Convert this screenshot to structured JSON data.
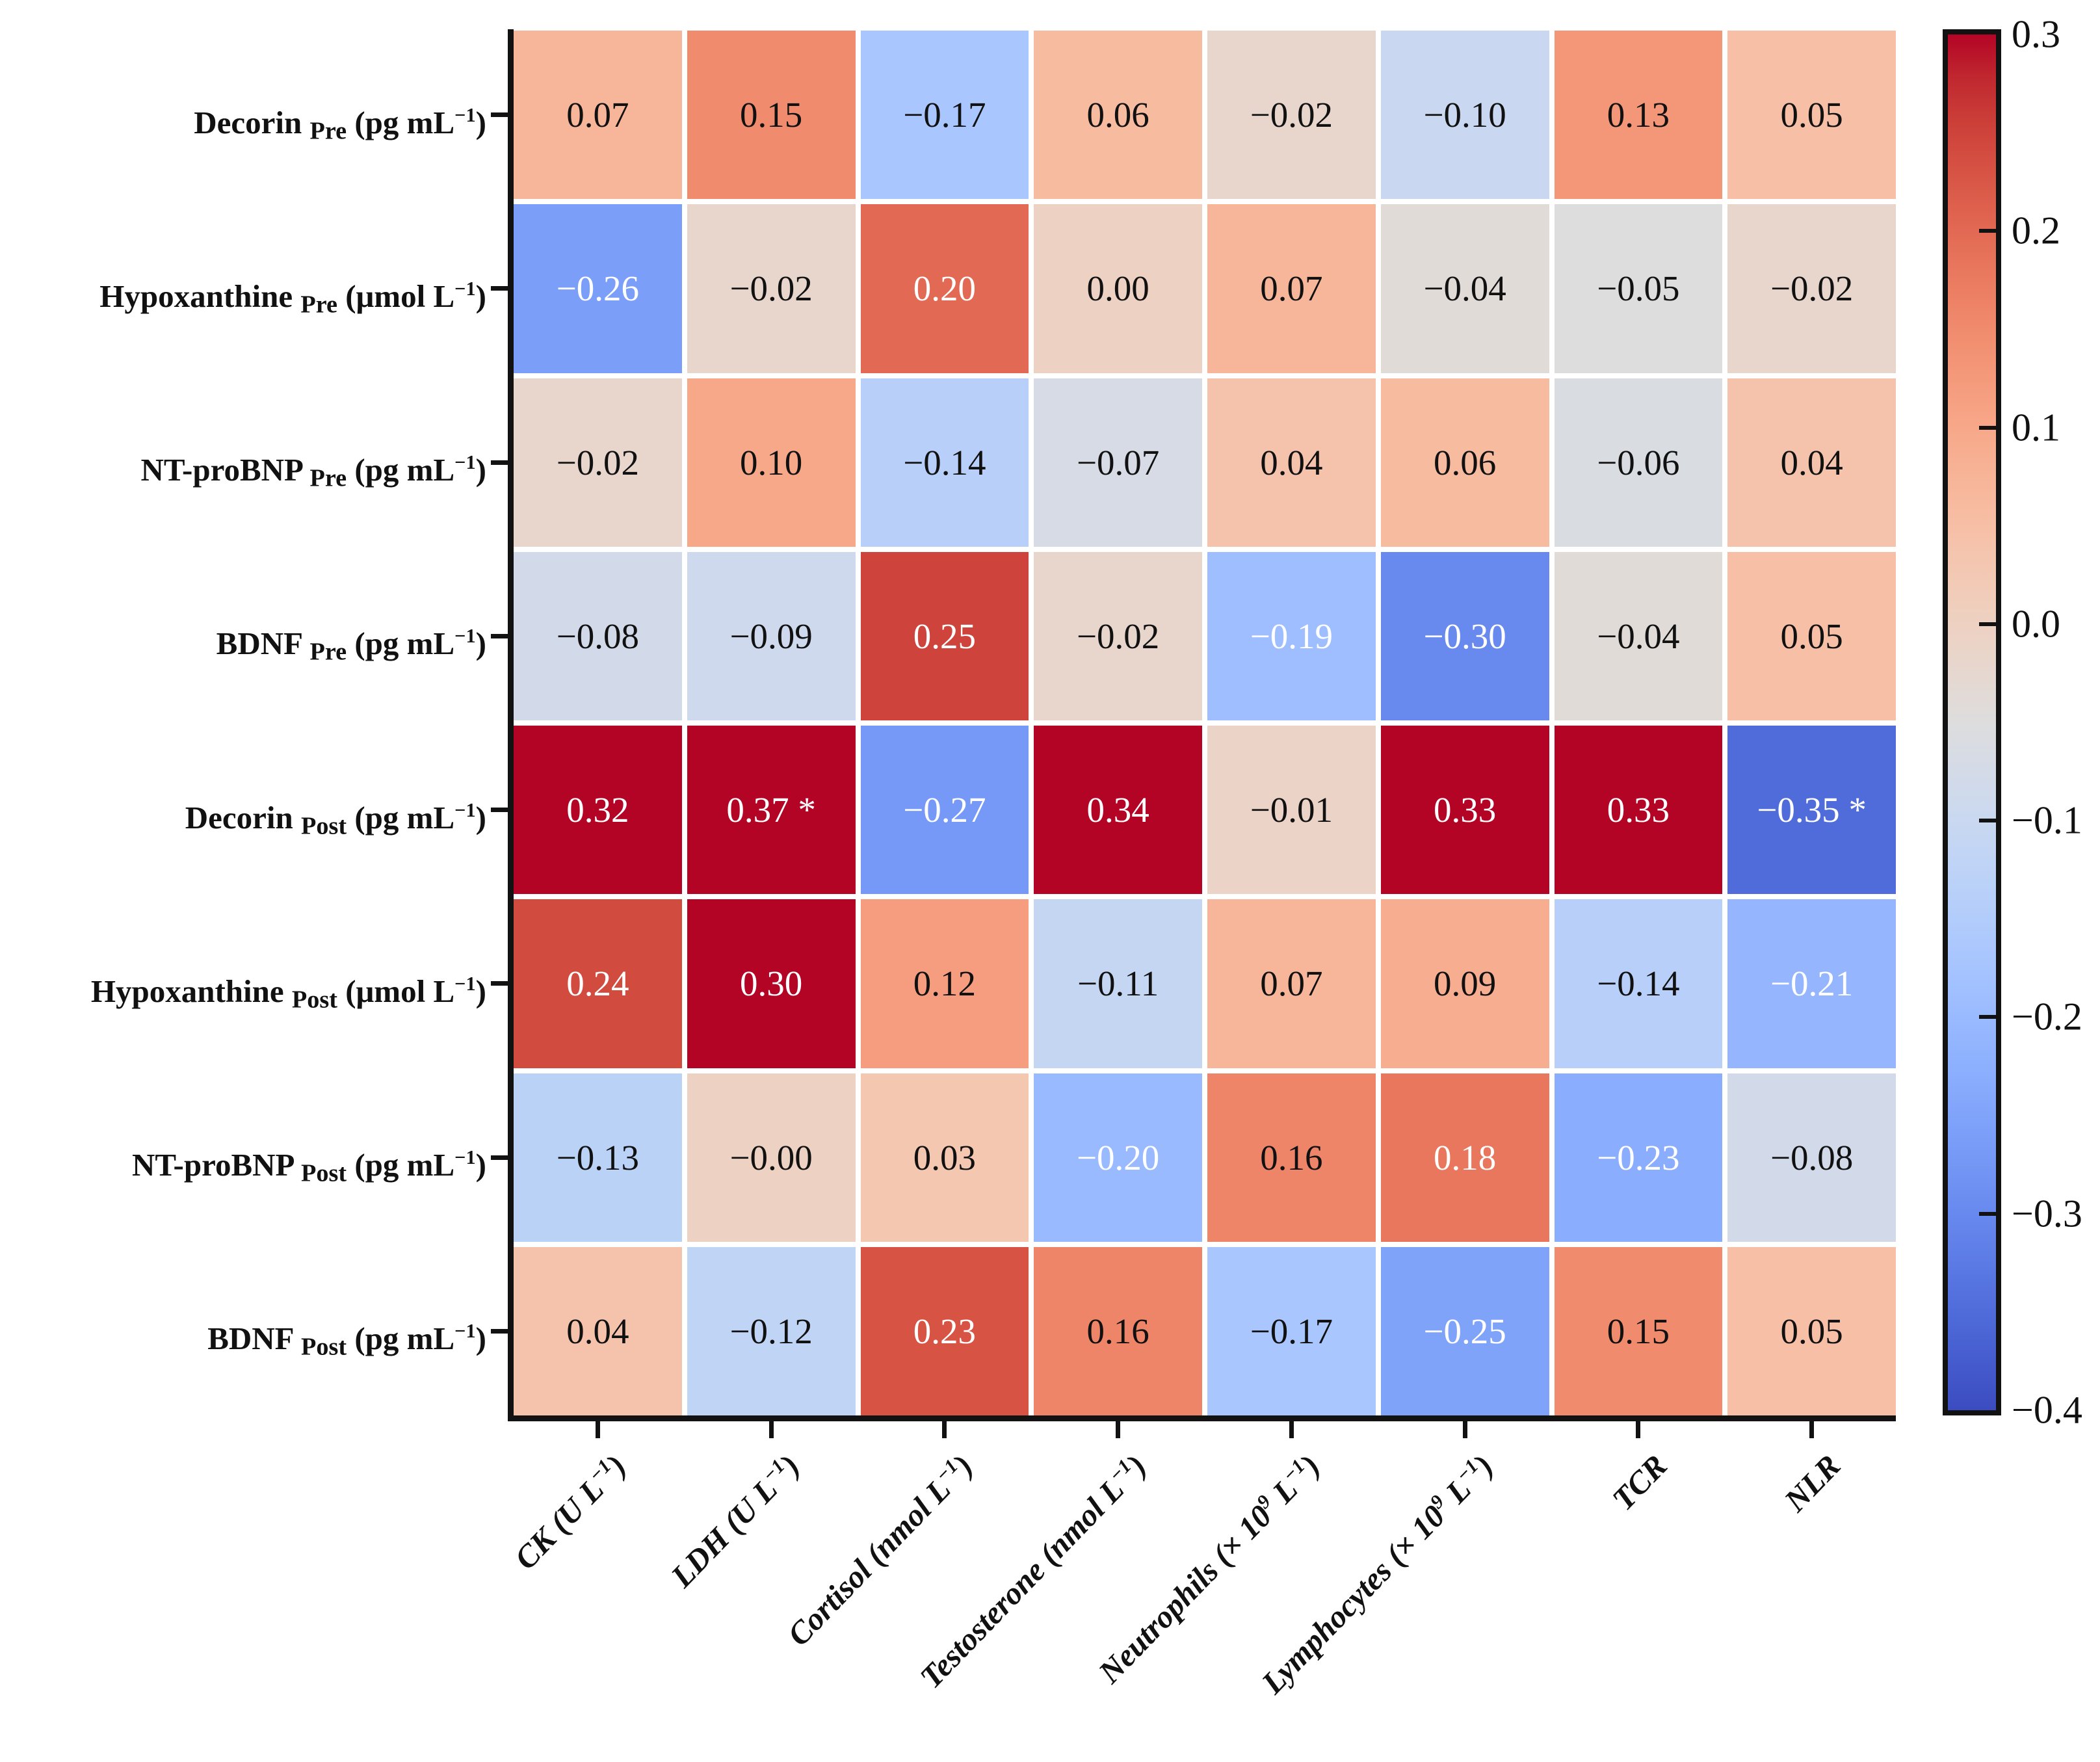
{
  "figure": {
    "background": "#ffffff"
  },
  "chart_data": {
    "type": "heatmap",
    "title": "",
    "colormap": "coolwarm",
    "vmin": -0.4,
    "vmax": 0.3,
    "color_min": "#3b4cc0",
    "color_mid": "#dddddd",
    "color_max": "#b40426",
    "white_text_threshold": 0.175,
    "grid_gap_color": "#ffffff",
    "rows": [
      {
        "text": "Decorin Pre (pg mL⁻¹)",
        "segments": [
          {
            "t": "Decorin "
          },
          {
            "b": "Pre"
          },
          {
            "t": " (pg mL"
          },
          {
            "s": "−1"
          },
          {
            "t": ")"
          }
        ]
      },
      {
        "text": "Hypoxanthine Pre (μmol L⁻¹)",
        "segments": [
          {
            "t": "Hypoxanthine "
          },
          {
            "b": "Pre"
          },
          {
            "t": " (μmol L"
          },
          {
            "s": "−1"
          },
          {
            "t": ")"
          }
        ]
      },
      {
        "text": "NT-proBNP Pre (pg mL⁻¹)",
        "segments": [
          {
            "t": "NT-proBNP "
          },
          {
            "b": "Pre"
          },
          {
            "t": " (pg mL"
          },
          {
            "s": "−1"
          },
          {
            "t": ")"
          }
        ]
      },
      {
        "text": "BDNF Pre (pg mL⁻¹)",
        "segments": [
          {
            "t": "BDNF "
          },
          {
            "b": "Pre"
          },
          {
            "t": " (pg mL"
          },
          {
            "s": "−1"
          },
          {
            "t": ")"
          }
        ]
      },
      {
        "text": "Decorin Post (pg mL⁻¹)",
        "segments": [
          {
            "t": "Decorin "
          },
          {
            "b": "Post"
          },
          {
            "t": " (pg mL"
          },
          {
            "s": "−1"
          },
          {
            "t": ")"
          }
        ]
      },
      {
        "text": "Hypoxanthine Post (μmol L⁻¹)",
        "segments": [
          {
            "t": "Hypoxanthine "
          },
          {
            "b": "Post"
          },
          {
            "t": " (μmol L"
          },
          {
            "s": "−1"
          },
          {
            "t": ")"
          }
        ]
      },
      {
        "text": "NT-proBNP Post (pg mL⁻¹)",
        "segments": [
          {
            "t": "NT-proBNP "
          },
          {
            "b": "Post"
          },
          {
            "t": " (pg mL"
          },
          {
            "s": "−1"
          },
          {
            "t": ")"
          }
        ]
      },
      {
        "text": "BDNF Post (pg mL⁻¹)",
        "segments": [
          {
            "t": "BDNF "
          },
          {
            "b": "Post"
          },
          {
            "t": " (pg mL"
          },
          {
            "s": "−1"
          },
          {
            "t": ")"
          }
        ]
      }
    ],
    "columns": [
      {
        "text": "CK (U L⁻¹)",
        "segments": [
          {
            "t": "CK (U L"
          },
          {
            "s": "−1"
          },
          {
            "t": ")"
          }
        ]
      },
      {
        "text": "LDH (U L⁻¹)",
        "segments": [
          {
            "t": "LDH (U L"
          },
          {
            "s": "−1"
          },
          {
            "t": ")"
          }
        ]
      },
      {
        "text": "Cortisol (nmol L⁻¹)",
        "segments": [
          {
            "t": "Cortisol (nmol L"
          },
          {
            "s": "−1"
          },
          {
            "t": ")"
          }
        ]
      },
      {
        "text": "Testosterone (nmol L⁻¹)",
        "segments": [
          {
            "t": "Testosterone (nmol L"
          },
          {
            "s": "−1"
          },
          {
            "t": ")"
          }
        ]
      },
      {
        "text": "Neutrophils (× 10⁹ L⁻¹)",
        "segments": [
          {
            "t": "Neutrophils (× 10"
          },
          {
            "s": "9"
          },
          {
            "t": " L"
          },
          {
            "s": "−1"
          },
          {
            "t": ")"
          }
        ]
      },
      {
        "text": "Lymphocytes (× 10⁹ L⁻¹)",
        "segments": [
          {
            "t": "Lymphocytes (× 10"
          },
          {
            "s": "9"
          },
          {
            "t": " L"
          },
          {
            "s": "−1"
          },
          {
            "t": ")"
          }
        ]
      },
      {
        "text": "TCR",
        "segments": [
          {
            "t": "TCR"
          }
        ]
      },
      {
        "text": "NLR",
        "segments": [
          {
            "t": "NLR"
          }
        ]
      }
    ],
    "values": [
      [
        0.07,
        0.15,
        -0.17,
        0.06,
        -0.02,
        -0.1,
        0.13,
        0.05
      ],
      [
        -0.26,
        -0.02,
        0.2,
        0.0,
        0.07,
        -0.04,
        -0.05,
        -0.02
      ],
      [
        -0.02,
        0.1,
        -0.14,
        -0.07,
        0.04,
        0.06,
        -0.06,
        0.04
      ],
      [
        -0.08,
        -0.09,
        0.25,
        -0.02,
        -0.19,
        -0.3,
        -0.04,
        0.05
      ],
      [
        0.32,
        0.37,
        -0.27,
        0.34,
        -0.01,
        0.33,
        0.33,
        -0.35
      ],
      [
        0.24,
        0.3,
        0.12,
        -0.11,
        0.07,
        0.09,
        -0.14,
        -0.21
      ],
      [
        -0.13,
        -0.0,
        0.03,
        -0.2,
        0.16,
        0.18,
        -0.23,
        -0.08
      ],
      [
        0.04,
        -0.12,
        0.23,
        0.16,
        -0.17,
        -0.25,
        0.15,
        0.05
      ]
    ],
    "annotations": [
      [
        "0.07",
        "0.15",
        "−0.17",
        "0.06",
        "−0.02",
        "−0.10",
        "0.13",
        "0.05"
      ],
      [
        "−0.26",
        "−0.02",
        "0.20",
        "0.00",
        "0.07",
        "−0.04",
        "−0.05",
        "−0.02"
      ],
      [
        "−0.02",
        "0.10",
        "−0.14",
        "−0.07",
        "0.04",
        "0.06",
        "−0.06",
        "0.04"
      ],
      [
        "−0.08",
        "−0.09",
        "0.25",
        "−0.02",
        "−0.19",
        "−0.30",
        "−0.04",
        "0.05"
      ],
      [
        "0.32",
        "0.37 *",
        "−0.27",
        "0.34",
        "−0.01",
        "0.33",
        "0.33",
        "−0.35 *"
      ],
      [
        "0.24",
        "0.30",
        "0.12",
        "−0.11",
        "0.07",
        "0.09",
        "−0.14",
        "−0.21"
      ],
      [
        "−0.13",
        "−0.00",
        "0.03",
        "−0.20",
        "0.16",
        "0.18",
        "−0.23",
        "−0.08"
      ],
      [
        "0.04",
        "−0.12",
        "0.23",
        "0.16",
        "−0.17",
        "−0.25",
        "0.15",
        "0.05"
      ]
    ],
    "colorbar": {
      "position": "right",
      "ticks": [
        {
          "value": 0.3,
          "label": "0.3"
        },
        {
          "value": 0.2,
          "label": "0.2"
        },
        {
          "value": 0.1,
          "label": "0.1"
        },
        {
          "value": 0.0,
          "label": "0.0"
        },
        {
          "value": -0.1,
          "label": "−0.1"
        },
        {
          "value": -0.2,
          "label": "−0.2"
        },
        {
          "value": -0.3,
          "label": "−0.3"
        },
        {
          "value": -0.4,
          "label": "−0.4"
        }
      ]
    }
  }
}
